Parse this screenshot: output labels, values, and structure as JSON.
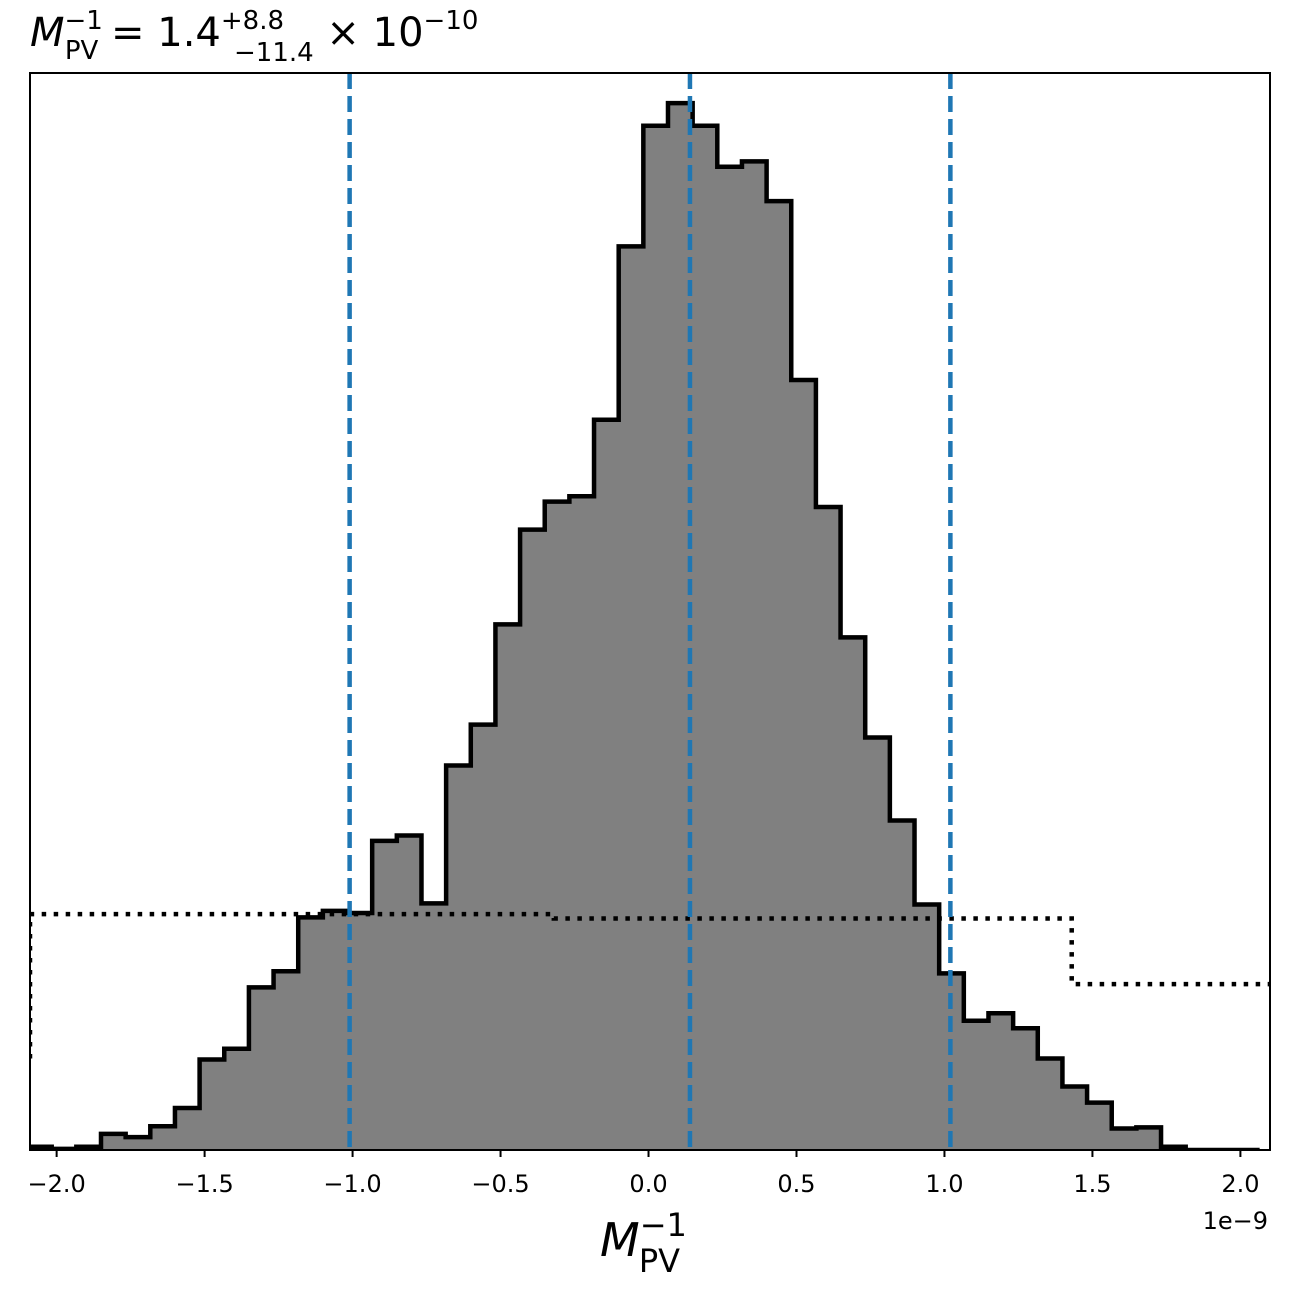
{
  "chart_data": {
    "type": "bar",
    "title": {
      "symbol": "M",
      "sub": "PV",
      "sup": "−1",
      "eq": " = 1.4",
      "err_plus": "+8.8",
      "err_minus": "−11.4",
      "times": " × 10",
      "exp": "−10"
    },
    "xlabel": {
      "symbol": "M",
      "sub": "PV",
      "sup": "−1"
    },
    "offset_label": "1e−9",
    "xlim": [
      -2.09,
      2.1
    ],
    "ylim": [
      0,
      1
    ],
    "xticks": [
      -2.0,
      -1.5,
      -1.0,
      -0.5,
      0.0,
      0.5,
      1.0,
      1.5,
      2.0
    ],
    "xtick_labels": [
      "−2.0",
      "−1.5",
      "−1.0",
      "−0.5",
      "0.0",
      "0.5",
      "1.0",
      "1.5",
      "2.0"
    ],
    "histogram": {
      "bin_start": -2.1,
      "bin_width": 0.0833,
      "fill_color": "#808080",
      "edge_color": "#000000",
      "counts": [
        0.003,
        0.001,
        0.003,
        0.015,
        0.012,
        0.022,
        0.039,
        0.084,
        0.094,
        0.151,
        0.166,
        0.216,
        0.222,
        0.22,
        0.287,
        0.292,
        0.229,
        0.357,
        0.395,
        0.488,
        0.576,
        0.602,
        0.607,
        0.678,
        0.839,
        0.951,
        0.972,
        0.951,
        0.913,
        0.918,
        0.881,
        0.715,
        0.597,
        0.476,
        0.383,
        0.306,
        0.228,
        0.164,
        0.12,
        0.127,
        0.113,
        0.085,
        0.059,
        0.044,
        0.02,
        0.021,
        0.003,
        0.0,
        0.0,
        0.0
      ]
    },
    "prior_step": {
      "line_color": "#000000",
      "style": "dotted",
      "x": [
        -2.09,
        -2.09,
        -0.32,
        -0.32,
        1.43,
        1.43,
        2.1
      ],
      "y": [
        0.085,
        0.219,
        0.219,
        0.215,
        0.215,
        0.154,
        0.154
      ]
    },
    "quantile_lines": {
      "color": "#1f77b4",
      "style": "dashed",
      "x": [
        -1.01,
        0.14,
        1.02
      ]
    }
  }
}
